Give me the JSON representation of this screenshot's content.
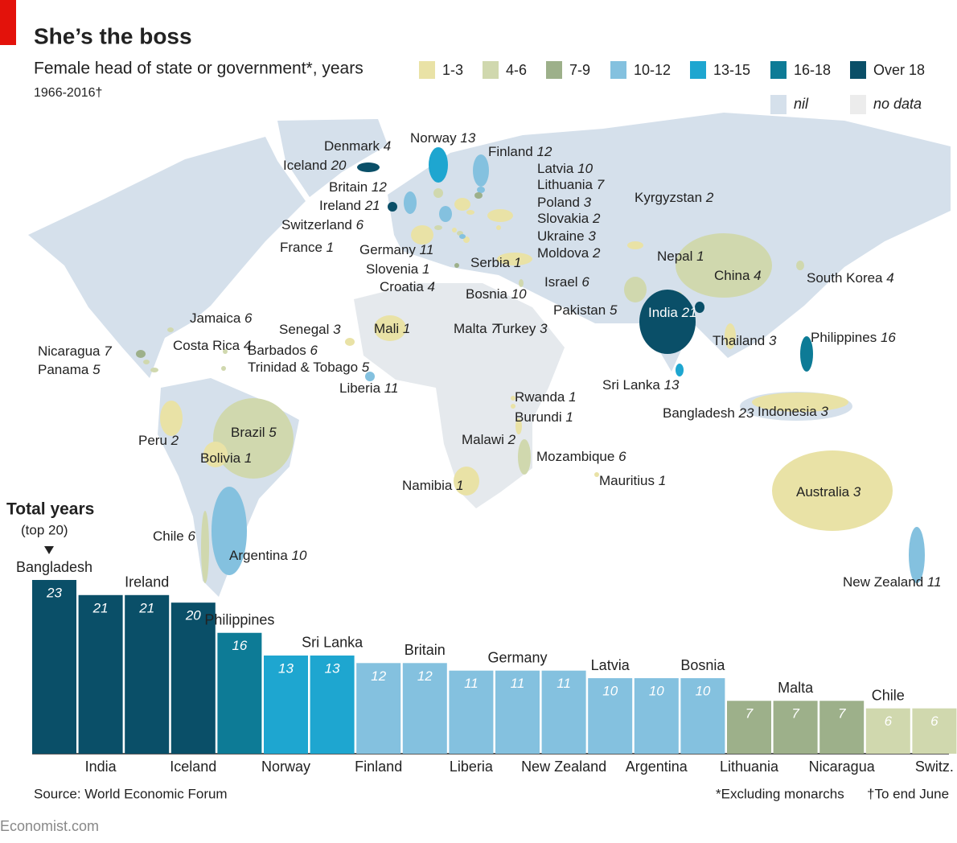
{
  "header": {
    "title": "She’s the boss",
    "subtitle": "Female head of state or government*, years",
    "period": "1966-2016†"
  },
  "legend": [
    {
      "label": "1-3",
      "color": "#e9e2a6"
    },
    {
      "label": "4-6",
      "color": "#d0d8ae"
    },
    {
      "label": "7-9",
      "color": "#9db08a"
    },
    {
      "label": "10-12",
      "color": "#84c1df"
    },
    {
      "label": "13-15",
      "color": "#1ea6d0"
    },
    {
      "label": "16-18",
      "color": "#0d7b96"
    },
    {
      "label": "Over 18",
      "color": "#0a4f68"
    }
  ],
  "legend_other": [
    {
      "label": "nil",
      "color": "#d5e0eb"
    },
    {
      "label": "no data",
      "color": "#ececec"
    }
  ],
  "map": {
    "countries": [
      {
        "name": "Denmark",
        "years": 4,
        "color": "#d0d8ae"
      },
      {
        "name": "Norway",
        "years": 13,
        "color": "#1ea6d0"
      },
      {
        "name": "Finland",
        "years": 12,
        "color": "#84c1df"
      },
      {
        "name": "Iceland",
        "years": 20,
        "color": "#0a4f68"
      },
      {
        "name": "Latvia",
        "years": 10,
        "color": "#84c1df"
      },
      {
        "name": "Lithuania",
        "years": 7,
        "color": "#9db08a"
      },
      {
        "name": "Britain",
        "years": 12,
        "color": "#84c1df"
      },
      {
        "name": "Poland",
        "years": 3,
        "color": "#e9e2a6"
      },
      {
        "name": "Ireland",
        "years": 21,
        "color": "#0a4f68"
      },
      {
        "name": "Kyrgyzstan",
        "years": 2,
        "color": "#e9e2a6"
      },
      {
        "name": "Slovakia",
        "years": 2,
        "color": "#e9e2a6"
      },
      {
        "name": "Switzerland",
        "years": 6,
        "color": "#d0d8ae"
      },
      {
        "name": "Ukraine",
        "years": 3,
        "color": "#e9e2a6"
      },
      {
        "name": "France",
        "years": 1,
        "color": "#e9e2a6"
      },
      {
        "name": "Germany",
        "years": 11,
        "color": "#84c1df"
      },
      {
        "name": "Moldova",
        "years": 2,
        "color": "#e9e2a6"
      },
      {
        "name": "Nepal",
        "years": 1,
        "color": "#e9e2a6"
      },
      {
        "name": "Serbia",
        "years": 1,
        "color": "#e9e2a6"
      },
      {
        "name": "Slovenia",
        "years": 1,
        "color": "#e9e2a6"
      },
      {
        "name": "China",
        "years": 4,
        "color": "#d0d8ae"
      },
      {
        "name": "South Korea",
        "years": 4,
        "color": "#d0d8ae"
      },
      {
        "name": "Israel",
        "years": 6,
        "color": "#d0d8ae"
      },
      {
        "name": "Croatia",
        "years": 4,
        "color": "#d0d8ae"
      },
      {
        "name": "Bosnia",
        "years": 10,
        "color": "#84c1df"
      },
      {
        "name": "India",
        "years": 21,
        "color": "#0a4f68"
      },
      {
        "name": "Pakistan",
        "years": 5,
        "color": "#d0d8ae"
      },
      {
        "name": "Jamaica",
        "years": 6,
        "color": "#d0d8ae"
      },
      {
        "name": "Senegal",
        "years": 3,
        "color": "#e9e2a6"
      },
      {
        "name": "Mali",
        "years": 1,
        "color": "#e9e2a6"
      },
      {
        "name": "Malta",
        "years": 7,
        "color": "#9db08a"
      },
      {
        "name": "Turkey",
        "years": 3,
        "color": "#e9e2a6"
      },
      {
        "name": "Philippines",
        "years": 16,
        "color": "#0d7b96"
      },
      {
        "name": "Thailand",
        "years": 3,
        "color": "#e9e2a6"
      },
      {
        "name": "Nicaragua",
        "years": 7,
        "color": "#9db08a"
      },
      {
        "name": "Costa Rica",
        "years": 4,
        "color": "#d0d8ae"
      },
      {
        "name": "Barbados",
        "years": 6,
        "color": "#d0d8ae"
      },
      {
        "name": "Trinidad & Tobago",
        "years": 5,
        "color": "#d0d8ae"
      },
      {
        "name": "Panama",
        "years": 5,
        "color": "#d0d8ae"
      },
      {
        "name": "Liberia",
        "years": 11,
        "color": "#84c1df"
      },
      {
        "name": "Sri Lanka",
        "years": 13,
        "color": "#1ea6d0"
      },
      {
        "name": "Rwanda",
        "years": 1,
        "color": "#e9e2a6"
      },
      {
        "name": "Burundi",
        "years": 1,
        "color": "#e9e2a6"
      },
      {
        "name": "Bangladesh",
        "years": 23,
        "color": "#0a4f68"
      },
      {
        "name": "Indonesia",
        "years": 3,
        "color": "#e9e2a6"
      },
      {
        "name": "Peru",
        "years": 2,
        "color": "#e9e2a6"
      },
      {
        "name": "Brazil",
        "years": 5,
        "color": "#d0d8ae"
      },
      {
        "name": "Malawi",
        "years": 2,
        "color": "#e9e2a6"
      },
      {
        "name": "Bolivia",
        "years": 1,
        "color": "#e9e2a6"
      },
      {
        "name": "Mozambique",
        "years": 6,
        "color": "#d0d8ae"
      },
      {
        "name": "Mauritius",
        "years": 1,
        "color": "#e9e2a6"
      },
      {
        "name": "Namibia",
        "years": 1,
        "color": "#e9e2a6"
      },
      {
        "name": "Australia",
        "years": 3,
        "color": "#e9e2a6"
      },
      {
        "name": "Chile",
        "years": 6,
        "color": "#d0d8ae"
      },
      {
        "name": "Argentina",
        "years": 10,
        "color": "#84c1df"
      },
      {
        "name": "New Zealand",
        "years": 11,
        "color": "#84c1df"
      }
    ]
  },
  "chart_data": {
    "type": "bar",
    "title": "Total years",
    "subtitle": "(top 20)",
    "categories": [
      "Bangladesh",
      "India",
      "Ireland",
      "Iceland",
      "Philippines",
      "Norway",
      "Sri Lanka",
      "Finland",
      "Britain",
      "Liberia",
      "Germany",
      "New Zealand",
      "Latvia",
      "Argentina",
      "Bosnia",
      "Lithuania",
      "Malta",
      "Nicaragua",
      "Chile",
      "Switz."
    ],
    "values": [
      23,
      21,
      21,
      20,
      16,
      13,
      13,
      12,
      12,
      11,
      11,
      11,
      10,
      10,
      10,
      7,
      7,
      7,
      6,
      6
    ],
    "colors": [
      "#0a4f68",
      "#0a4f68",
      "#0a4f68",
      "#0a4f68",
      "#0d7b96",
      "#1ea6d0",
      "#1ea6d0",
      "#84c1df",
      "#84c1df",
      "#84c1df",
      "#84c1df",
      "#84c1df",
      "#84c1df",
      "#84c1df",
      "#84c1df",
      "#9db08a",
      "#9db08a",
      "#9db08a",
      "#d0d8ae",
      "#d0d8ae"
    ]
  },
  "footer": {
    "source": "Source: World Economic Forum",
    "note1": "*Excluding monarchs",
    "note2": "†To end June",
    "brand": "Economist.com"
  }
}
